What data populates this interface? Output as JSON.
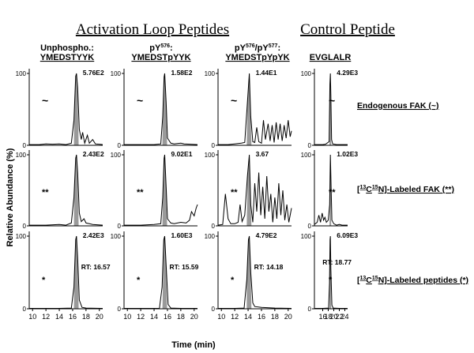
{
  "chart_data": {
    "type": "line",
    "section_titles": {
      "activation": "Activation Loop Peptides",
      "control": "Control Peptide"
    },
    "columns": [
      {
        "line1_pre": "Unphospho.:",
        "line1_sup": "",
        "line1_post": "",
        "line1_sup2": "",
        "line1_end": "",
        "line2": "YMEDSTYYK"
      },
      {
        "line1_pre": "pY",
        "line1_sup": "576",
        "line1_post": ":",
        "line1_sup2": "",
        "line1_end": "",
        "line2": "YMEDSTpYYK"
      },
      {
        "line1_pre": "pY",
        "line1_sup": "576",
        "line1_post": "/pY",
        "line1_sup2": "577",
        "line1_end": ":",
        "line2": "YMEDSTpYpYK"
      },
      {
        "line1_pre": "EVGLALR",
        "line1_sup": "",
        "line1_post": "",
        "line1_sup2": "",
        "line1_end": "",
        "line2": ""
      }
    ],
    "row_labels": [
      {
        "pre": "Endogenous FAK (~)",
        "sup1": "",
        "mid": "",
        "sup2": "",
        "post": ""
      },
      {
        "pre": "[",
        "sup1": "13",
        "mid": "C",
        "sup2": "15",
        "post": "N]-Labeled FAK (**)"
      },
      {
        "pre": "[",
        "sup1": "13",
        "mid": "C",
        "sup2": "15",
        "post": "N]-Labeled peptides (*)"
      }
    ],
    "ylabel": "Relative Abundance (%)",
    "xlabel": "Time (min)",
    "ylim": [
      0,
      100
    ],
    "yticks": [
      0,
      100
    ],
    "x_axes": [
      {
        "xlim": [
          9.5,
          20.5
        ],
        "ticks": [
          10,
          12,
          14,
          16,
          18,
          20
        ]
      },
      {
        "xlim": [
          9.5,
          20.5
        ],
        "ticks": [
          10,
          12,
          14,
          16,
          18,
          20
        ]
      },
      {
        "xlim": [
          9.5,
          20.5
        ],
        "ticks": [
          10,
          12,
          14,
          16,
          18,
          20
        ]
      },
      {
        "xlim": [
          13,
          25
        ],
        "ticks": [
          16,
          18,
          20,
          22,
          24
        ]
      }
    ],
    "panels": [
      {
        "row": 0,
        "col": 0,
        "marker": "~",
        "intensity": "5.76E2",
        "rt": "",
        "peak_x": 16.57,
        "shade": [
          16.2,
          16.9
        ],
        "points": [
          [
            9.5,
            1
          ],
          [
            11,
            1
          ],
          [
            12,
            2
          ],
          [
            13,
            1.5
          ],
          [
            14,
            2
          ],
          [
            15,
            1
          ],
          [
            15.8,
            3
          ],
          [
            16.2,
            35
          ],
          [
            16.45,
            96
          ],
          [
            16.57,
            100
          ],
          [
            16.75,
            80
          ],
          [
            17,
            22
          ],
          [
            17.3,
            8
          ],
          [
            17.5,
            18
          ],
          [
            17.8,
            3
          ],
          [
            18.2,
            14
          ],
          [
            18.5,
            3
          ],
          [
            19,
            8
          ],
          [
            19.4,
            2
          ],
          [
            20.5,
            1
          ]
        ]
      },
      {
        "row": 0,
        "col": 1,
        "marker": "~",
        "intensity": "1.58E2",
        "rt": "",
        "peak_x": 15.59,
        "shade": [
          15.25,
          15.95
        ],
        "points": [
          [
            9.5,
            1
          ],
          [
            12,
            1
          ],
          [
            14,
            1
          ],
          [
            15,
            2
          ],
          [
            15.3,
            40
          ],
          [
            15.5,
            95
          ],
          [
            15.59,
            100
          ],
          [
            15.8,
            60
          ],
          [
            16,
            10
          ],
          [
            16.5,
            3
          ],
          [
            17,
            2
          ],
          [
            18,
            3
          ],
          [
            18.5,
            2
          ],
          [
            20.5,
            1
          ]
        ]
      },
      {
        "row": 0,
        "col": 2,
        "marker": "~",
        "intensity": "1.44E1",
        "rt": "",
        "peak_x": 14.18,
        "shade": [
          13.8,
          14.5
        ],
        "points": [
          [
            9.5,
            1
          ],
          [
            11,
            1
          ],
          [
            12,
            2
          ],
          [
            13,
            3
          ],
          [
            13.5,
            4
          ],
          [
            13.9,
            60
          ],
          [
            14.18,
            100
          ],
          [
            14.4,
            40
          ],
          [
            14.7,
            5
          ],
          [
            15,
            4
          ],
          [
            15.3,
            25
          ],
          [
            15.6,
            5
          ],
          [
            16,
            3
          ],
          [
            16.3,
            35
          ],
          [
            16.6,
            8
          ],
          [
            17,
            30
          ],
          [
            17.3,
            6
          ],
          [
            17.6,
            28
          ],
          [
            17.9,
            4
          ],
          [
            18.2,
            32
          ],
          [
            18.5,
            8
          ],
          [
            18.8,
            30
          ],
          [
            19.1,
            6
          ],
          [
            19.4,
            28
          ],
          [
            19.7,
            10
          ],
          [
            20,
            35
          ],
          [
            20.3,
            12
          ],
          [
            20.5,
            20
          ]
        ]
      },
      {
        "row": 0,
        "col": 3,
        "marker": "~",
        "intensity": "4.29E3",
        "rt": "",
        "peak_x": 18.77,
        "shade": [
          18.45,
          19.05
        ],
        "points": [
          [
            13,
            1
          ],
          [
            15,
            1
          ],
          [
            16,
            1
          ],
          [
            17,
            1.5
          ],
          [
            18.3,
            5
          ],
          [
            18.6,
            85
          ],
          [
            18.77,
            100
          ],
          [
            18.95,
            70
          ],
          [
            19.2,
            8
          ],
          [
            19.6,
            2
          ],
          [
            21,
            1
          ],
          [
            23,
            1
          ],
          [
            25,
            1
          ]
        ]
      },
      {
        "row": 1,
        "col": 0,
        "marker": "**",
        "intensity": "2.43E2",
        "rt": "",
        "peak_x": 16.57,
        "shade": [
          16.2,
          16.9
        ],
        "points": [
          [
            9.5,
            1
          ],
          [
            12,
            1
          ],
          [
            14,
            2
          ],
          [
            15,
            1
          ],
          [
            15.8,
            4
          ],
          [
            16.2,
            40
          ],
          [
            16.45,
            95
          ],
          [
            16.57,
            100
          ],
          [
            16.75,
            75
          ],
          [
            17,
            18
          ],
          [
            17.3,
            6
          ],
          [
            17.7,
            10
          ],
          [
            18,
            4
          ],
          [
            18.5,
            3
          ],
          [
            19,
            2
          ],
          [
            20.5,
            1
          ]
        ]
      },
      {
        "row": 1,
        "col": 1,
        "marker": "**",
        "intensity": "9.02E1",
        "rt": "",
        "peak_x": 15.59,
        "shade": [
          15.25,
          15.95
        ],
        "points": [
          [
            9.5,
            1
          ],
          [
            12,
            1
          ],
          [
            14,
            2
          ],
          [
            15,
            3
          ],
          [
            15.3,
            40
          ],
          [
            15.5,
            95
          ],
          [
            15.59,
            100
          ],
          [
            15.8,
            55
          ],
          [
            16,
            10
          ],
          [
            16.5,
            4
          ],
          [
            17,
            3
          ],
          [
            18,
            5
          ],
          [
            18.8,
            4
          ],
          [
            19.3,
            8
          ],
          [
            19.6,
            20
          ],
          [
            20,
            14
          ],
          [
            20.3,
            25
          ],
          [
            20.5,
            30
          ]
        ]
      },
      {
        "row": 1,
        "col": 2,
        "marker": "**",
        "intensity": "3.67",
        "rt": "",
        "peak_x": 14.18,
        "shade": [
          13.8,
          14.5
        ],
        "points": [
          [
            9.5,
            1
          ],
          [
            10.2,
            2
          ],
          [
            10.6,
            45
          ],
          [
            11,
            10
          ],
          [
            11.4,
            3
          ],
          [
            12,
            3
          ],
          [
            12.5,
            5
          ],
          [
            12.8,
            30
          ],
          [
            13.1,
            6
          ],
          [
            13.5,
            15
          ],
          [
            13.9,
            70
          ],
          [
            14.18,
            100
          ],
          [
            14.4,
            30
          ],
          [
            14.7,
            5
          ],
          [
            15,
            60
          ],
          [
            15.3,
            20
          ],
          [
            15.6,
            75
          ],
          [
            15.9,
            15
          ],
          [
            16.2,
            55
          ],
          [
            16.5,
            10
          ],
          [
            16.8,
            70
          ],
          [
            17.1,
            20
          ],
          [
            17.4,
            45
          ],
          [
            17.7,
            5
          ],
          [
            18,
            40
          ],
          [
            18.3,
            10
          ],
          [
            18.6,
            60
          ],
          [
            18.9,
            15
          ],
          [
            19.2,
            50
          ],
          [
            19.5,
            8
          ],
          [
            19.8,
            30
          ],
          [
            20.1,
            5
          ],
          [
            20.5,
            25
          ]
        ]
      },
      {
        "row": 1,
        "col": 3,
        "marker": "**",
        "intensity": "1.02E3",
        "rt": "",
        "peak_x": 18.77,
        "shade": [
          18.45,
          19.05
        ],
        "points": [
          [
            13,
            2
          ],
          [
            14,
            5
          ],
          [
            14.6,
            15
          ],
          [
            15.2,
            5
          ],
          [
            15.8,
            18
          ],
          [
            16.3,
            8
          ],
          [
            16.8,
            12
          ],
          [
            17.3,
            5
          ],
          [
            18,
            8
          ],
          [
            18.5,
            30
          ],
          [
            18.77,
            100
          ],
          [
            19,
            60
          ],
          [
            19.3,
            8
          ],
          [
            20,
            3
          ],
          [
            21,
            1
          ],
          [
            22,
            2
          ],
          [
            23,
            1
          ],
          [
            25,
            1
          ]
        ]
      },
      {
        "row": 2,
        "col": 0,
        "marker": "*",
        "intensity": "2.42E3",
        "rt": "RT: 16.57",
        "peak_x": 16.57,
        "shade": [
          16.2,
          16.9
        ],
        "points": [
          [
            9.5,
            0.5
          ],
          [
            12,
            0.5
          ],
          [
            14,
            0.5
          ],
          [
            15.8,
            1
          ],
          [
            16.2,
            30
          ],
          [
            16.45,
            95
          ],
          [
            16.57,
            100
          ],
          [
            16.75,
            70
          ],
          [
            17,
            12
          ],
          [
            17.4,
            2
          ],
          [
            18,
            1
          ],
          [
            20.5,
            0.5
          ]
        ]
      },
      {
        "row": 2,
        "col": 1,
        "marker": "*",
        "intensity": "1.60E3",
        "rt": "RT: 15.59",
        "peak_x": 15.59,
        "shade": [
          15.25,
          15.95
        ],
        "points": [
          [
            9.5,
            0.5
          ],
          [
            12,
            0.5
          ],
          [
            14.8,
            0.5
          ],
          [
            15.2,
            30
          ],
          [
            15.45,
            95
          ],
          [
            15.59,
            100
          ],
          [
            15.8,
            60
          ],
          [
            16.1,
            6
          ],
          [
            16.5,
            1
          ],
          [
            18,
            0.5
          ],
          [
            20.5,
            0.5
          ]
        ]
      },
      {
        "row": 2,
        "col": 2,
        "marker": "*",
        "intensity": "4.79E2",
        "rt": "RT: 14.18",
        "peak_x": 14.18,
        "shade": [
          13.8,
          14.5
        ],
        "points": [
          [
            9.5,
            0.5
          ],
          [
            12,
            0.5
          ],
          [
            13.4,
            1
          ],
          [
            13.8,
            40
          ],
          [
            14.05,
            95
          ],
          [
            14.18,
            100
          ],
          [
            14.4,
            50
          ],
          [
            14.7,
            8
          ],
          [
            15,
            3
          ],
          [
            16,
            2
          ],
          [
            18,
            1
          ],
          [
            20.5,
            0.5
          ]
        ]
      },
      {
        "row": 2,
        "col": 3,
        "marker": "*",
        "intensity": "6.09E3",
        "rt": "RT: 18.77",
        "peak_x": 18.77,
        "shade": [
          18.45,
          19.05
        ],
        "points": [
          [
            13,
            0.5
          ],
          [
            16,
            0.5
          ],
          [
            18.1,
            1
          ],
          [
            18.45,
            35
          ],
          [
            18.65,
            95
          ],
          [
            18.77,
            100
          ],
          [
            18.95,
            55
          ],
          [
            19.3,
            5
          ],
          [
            19.8,
            1
          ],
          [
            22,
            0.5
          ],
          [
            25,
            0.5
          ]
        ]
      }
    ]
  }
}
